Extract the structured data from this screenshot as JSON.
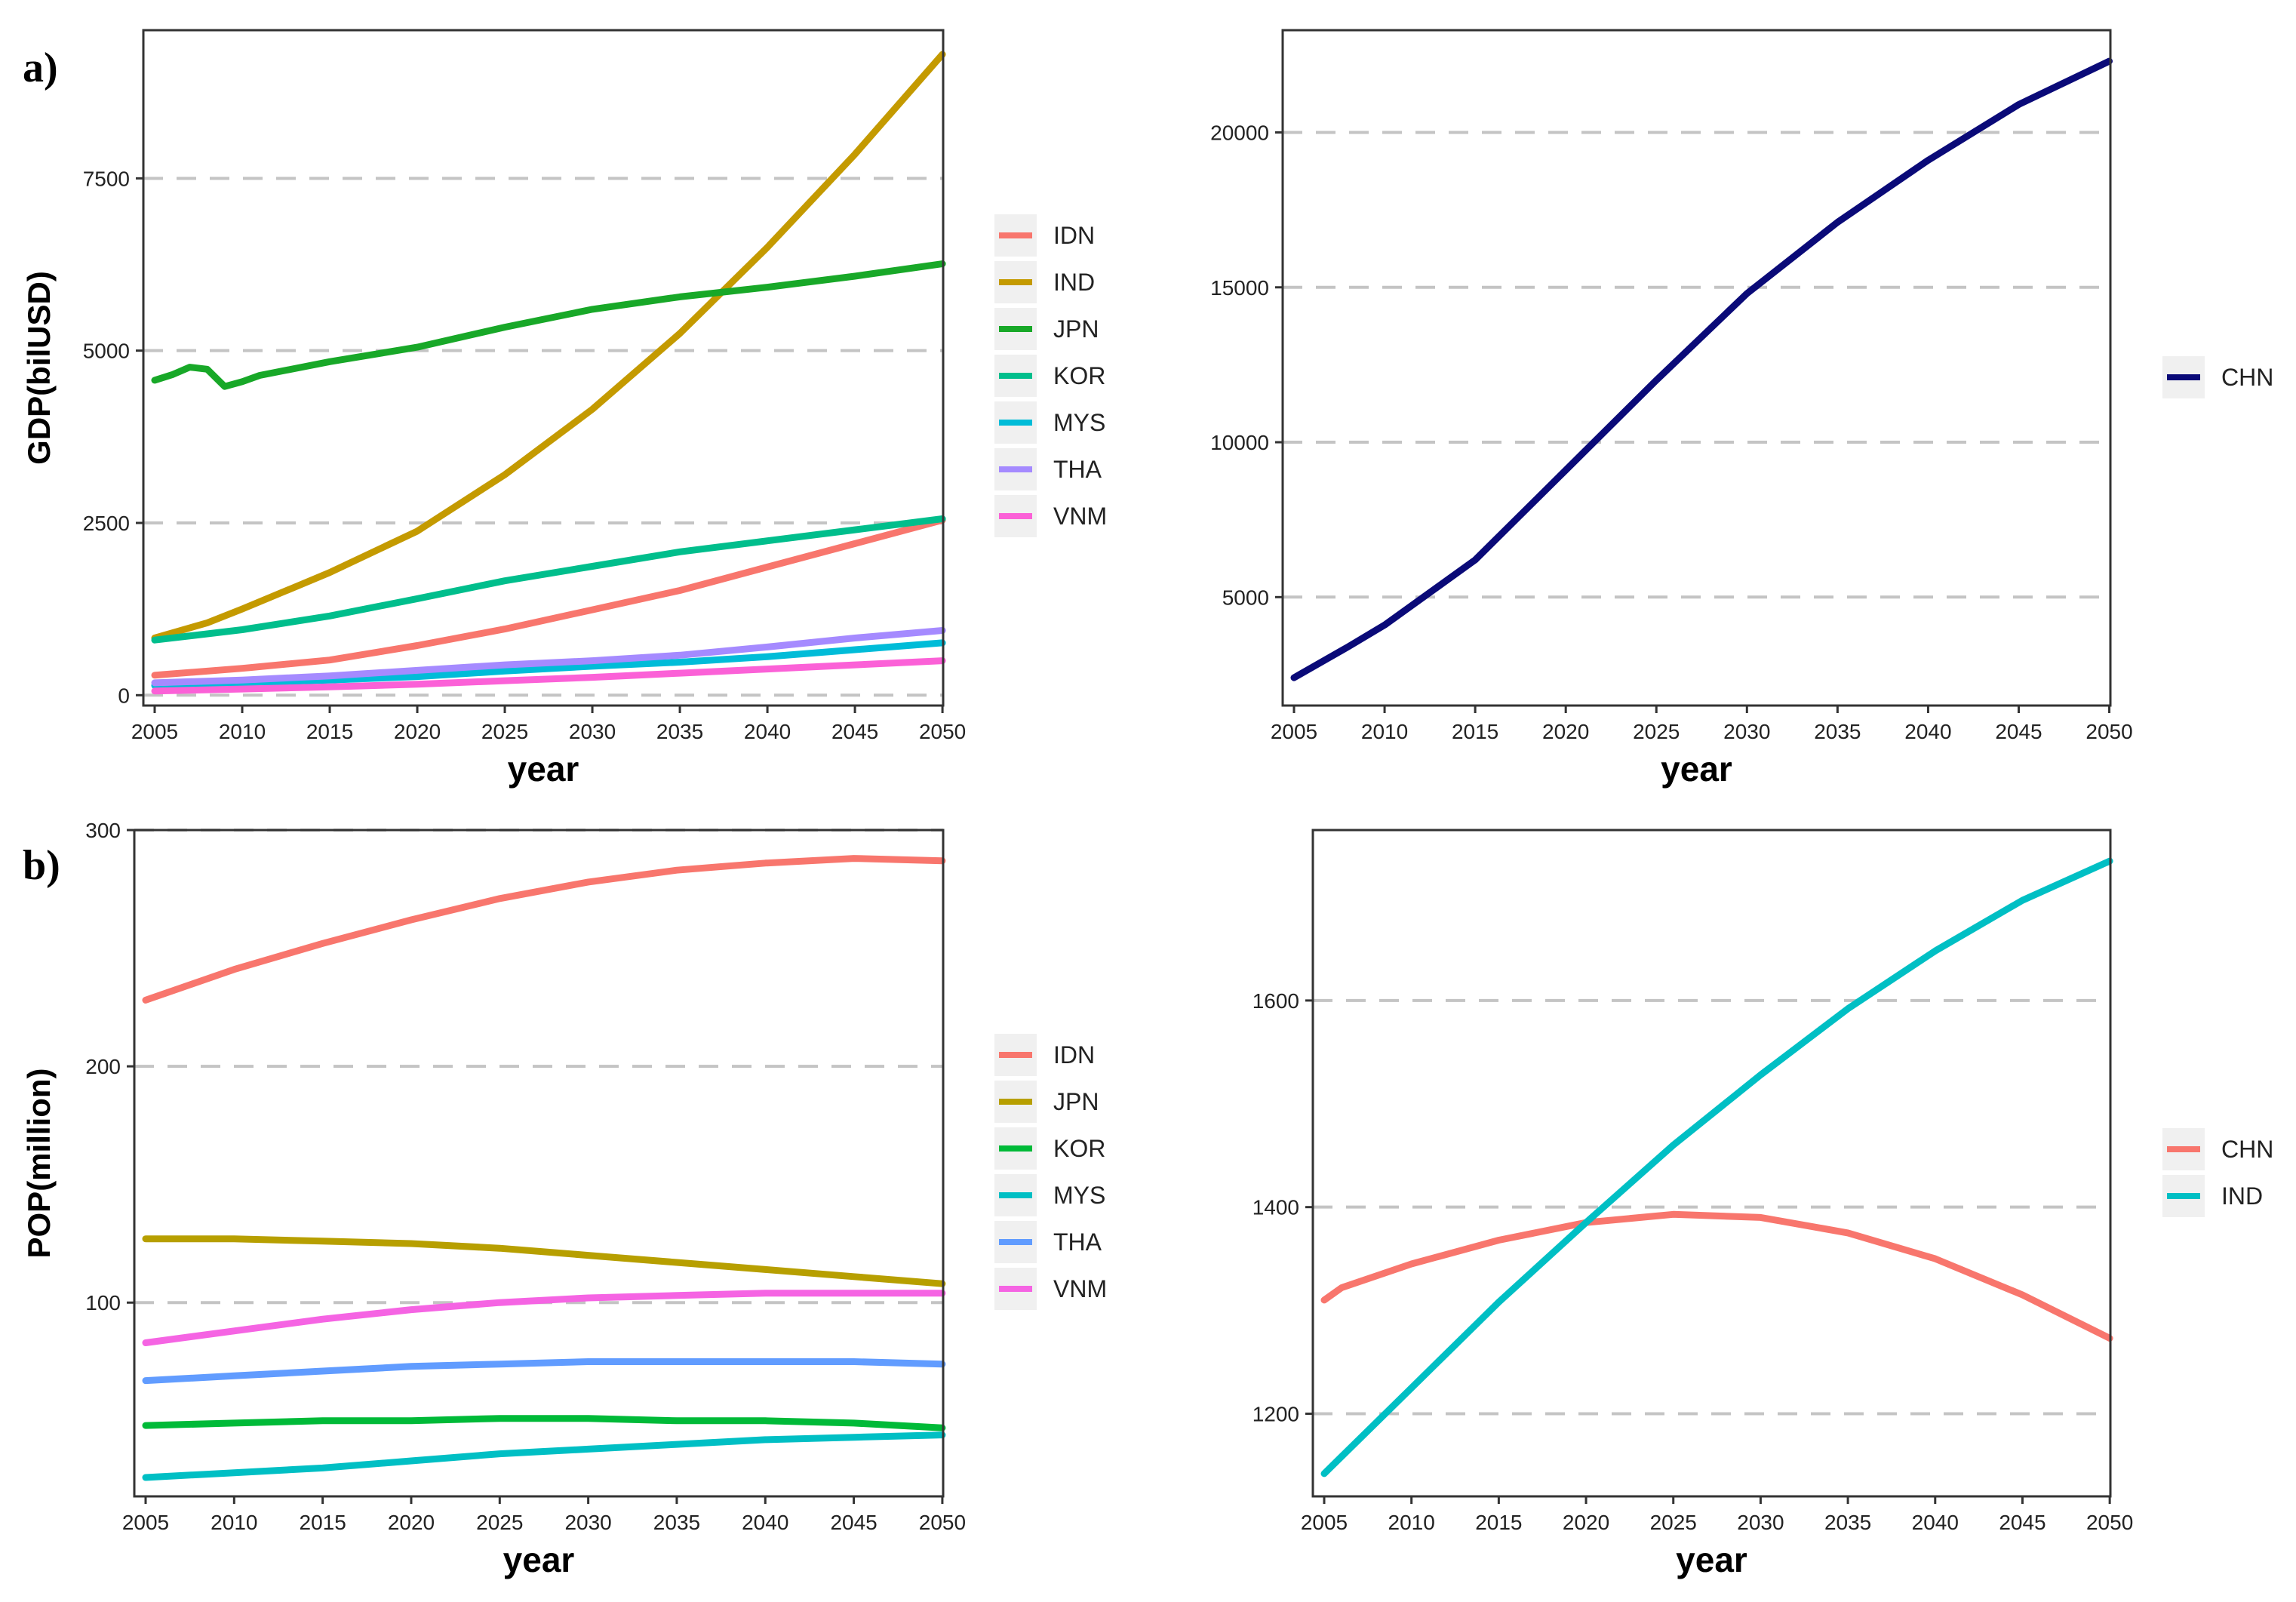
{
  "panel_labels": {
    "a": "a)",
    "b": "b)"
  },
  "chart_data": [
    {
      "id": "gdp-others",
      "type": "line",
      "title": "",
      "xlabel": "year",
      "ylabel": "GDP(bilUSD)",
      "xlim": [
        2005,
        2050
      ],
      "ylim": [
        -150,
        9650
      ],
      "x_ticks": [
        2005,
        2010,
        2015,
        2020,
        2025,
        2030,
        2035,
        2040,
        2045,
        2050
      ],
      "y_ticks": [
        0,
        2500,
        5000,
        7500
      ],
      "legend_position": "right",
      "series": [
        {
          "name": "IDN",
          "color": "#F8766D",
          "x": [
            2005,
            2010,
            2015,
            2020,
            2025,
            2030,
            2035,
            2040,
            2045,
            2050
          ],
          "values": [
            290,
            390,
            510,
            720,
            960,
            1240,
            1520,
            1860,
            2200,
            2540
          ]
        },
        {
          "name": "IND",
          "color": "#C49A00",
          "x": [
            2005,
            2008,
            2010,
            2015,
            2020,
            2025,
            2030,
            2035,
            2040,
            2045,
            2050
          ],
          "values": [
            830,
            1050,
            1250,
            1780,
            2380,
            3200,
            4150,
            5250,
            6500,
            7850,
            9300
          ]
        },
        {
          "name": "JPN",
          "color": "#18A828",
          "x": [
            2005,
            2006,
            2007,
            2008,
            2009,
            2010,
            2011,
            2015,
            2020,
            2025,
            2030,
            2035,
            2040,
            2045,
            2050
          ],
          "values": [
            4570,
            4650,
            4760,
            4730,
            4480,
            4550,
            4640,
            4840,
            5050,
            5340,
            5600,
            5780,
            5920,
            6080,
            6260
          ]
        },
        {
          "name": "KOR",
          "color": "#00BE8C",
          "x": [
            2005,
            2010,
            2015,
            2020,
            2025,
            2030,
            2035,
            2040,
            2045,
            2050
          ],
          "values": [
            800,
            950,
            1150,
            1400,
            1660,
            1870,
            2080,
            2240,
            2400,
            2560
          ]
        },
        {
          "name": "MYS",
          "color": "#00BCD8",
          "x": [
            2005,
            2010,
            2015,
            2020,
            2025,
            2030,
            2035,
            2040,
            2045,
            2050
          ],
          "values": [
            140,
            180,
            220,
            270,
            350,
            420,
            480,
            560,
            660,
            760
          ]
        },
        {
          "name": "THA",
          "color": "#A58AFF",
          "x": [
            2005,
            2010,
            2015,
            2020,
            2025,
            2030,
            2035,
            2040,
            2045,
            2050
          ],
          "values": [
            180,
            220,
            280,
            360,
            440,
            500,
            580,
            700,
            830,
            940
          ]
        },
        {
          "name": "VNM",
          "color": "#FB61D7",
          "x": [
            2005,
            2010,
            2015,
            2020,
            2025,
            2030,
            2035,
            2040,
            2045,
            2050
          ],
          "values": [
            60,
            90,
            120,
            160,
            210,
            260,
            320,
            380,
            440,
            500
          ]
        }
      ]
    },
    {
      "id": "gdp-chn",
      "type": "line",
      "title": "",
      "xlabel": "year",
      "ylabel": "",
      "xlim": [
        2005,
        2050
      ],
      "ylim": [
        1500,
        23300
      ],
      "x_ticks": [
        2005,
        2010,
        2015,
        2020,
        2025,
        2030,
        2035,
        2040,
        2045,
        2050
      ],
      "y_ticks": [
        5000,
        10000,
        15000,
        20000
      ],
      "legend_position": "right",
      "series": [
        {
          "name": "CHN",
          "color": "#0A0A78",
          "x": [
            2005,
            2008,
            2010,
            2015,
            2020,
            2025,
            2030,
            2035,
            2040,
            2045,
            2050
          ],
          "values": [
            2400,
            3400,
            4100,
            6200,
            9100,
            12000,
            14800,
            17100,
            19100,
            20900,
            22300
          ]
        }
      ]
    },
    {
      "id": "pop-others",
      "type": "line",
      "title": "",
      "xlabel": "year",
      "ylabel": "POP(million)",
      "xlim": [
        2005,
        2050
      ],
      "ylim": [
        18,
        300
      ],
      "x_ticks": [
        2005,
        2010,
        2015,
        2020,
        2025,
        2030,
        2035,
        2040,
        2045,
        2050
      ],
      "y_ticks": [
        100,
        200,
        300
      ],
      "legend_position": "right",
      "series": [
        {
          "name": "IDN",
          "color": "#F8766D",
          "x": [
            2005,
            2010,
            2015,
            2020,
            2025,
            2030,
            2035,
            2040,
            2045,
            2050
          ],
          "values": [
            228,
            241,
            252,
            262,
            271,
            278,
            283,
            286,
            288,
            287
          ]
        },
        {
          "name": "JPN",
          "color": "#B79F00",
          "x": [
            2005,
            2010,
            2015,
            2020,
            2025,
            2030,
            2035,
            2040,
            2045,
            2050
          ],
          "values": [
            127,
            127,
            126,
            125,
            123,
            120,
            117,
            114,
            111,
            108
          ]
        },
        {
          "name": "KOR",
          "color": "#00BA38",
          "x": [
            2005,
            2010,
            2015,
            2020,
            2025,
            2030,
            2035,
            2040,
            2045,
            2050
          ],
          "values": [
            48,
            49,
            50,
            50,
            51,
            51,
            50,
            50,
            49,
            47
          ]
        },
        {
          "name": "MYS",
          "color": "#00BFC4",
          "x": [
            2005,
            2010,
            2015,
            2020,
            2025,
            2030,
            2035,
            2040,
            2045,
            2050
          ],
          "values": [
            26,
            28,
            30,
            33,
            36,
            38,
            40,
            42,
            43,
            44
          ]
        },
        {
          "name": "THA",
          "color": "#619CFF",
          "x": [
            2005,
            2010,
            2015,
            2020,
            2025,
            2030,
            2035,
            2040,
            2045,
            2050
          ],
          "values": [
            67,
            69,
            71,
            73,
            74,
            75,
            75,
            75,
            75,
            74
          ]
        },
        {
          "name": "VNM",
          "color": "#F564E3",
          "x": [
            2005,
            2010,
            2015,
            2020,
            2025,
            2030,
            2035,
            2040,
            2045,
            2050
          ],
          "values": [
            83,
            88,
            93,
            97,
            100,
            102,
            103,
            104,
            104,
            104
          ]
        }
      ]
    },
    {
      "id": "pop-chn-ind",
      "type": "line",
      "title": "",
      "xlabel": "year",
      "ylabel": "",
      "xlim": [
        2005,
        2050
      ],
      "ylim": [
        1120,
        1765
      ],
      "x_ticks": [
        2005,
        2010,
        2015,
        2020,
        2025,
        2030,
        2035,
        2040,
        2045,
        2050
      ],
      "y_ticks": [
        1200,
        1400,
        1600
      ],
      "legend_position": "right",
      "series": [
        {
          "name": "CHN",
          "color": "#F8766D",
          "x": [
            2005,
            2006,
            2010,
            2015,
            2020,
            2025,
            2030,
            2035,
            2040,
            2045,
            2050
          ],
          "values": [
            1310,
            1322,
            1345,
            1368,
            1385,
            1393,
            1390,
            1375,
            1350,
            1315,
            1273
          ]
        },
        {
          "name": "IND",
          "color": "#00BFC4",
          "x": [
            2005,
            2010,
            2015,
            2020,
            2025,
            2030,
            2035,
            2040,
            2045,
            2050
          ],
          "values": [
            1142,
            1225,
            1308,
            1385,
            1460,
            1528,
            1592,
            1648,
            1697,
            1735
          ]
        }
      ]
    }
  ]
}
